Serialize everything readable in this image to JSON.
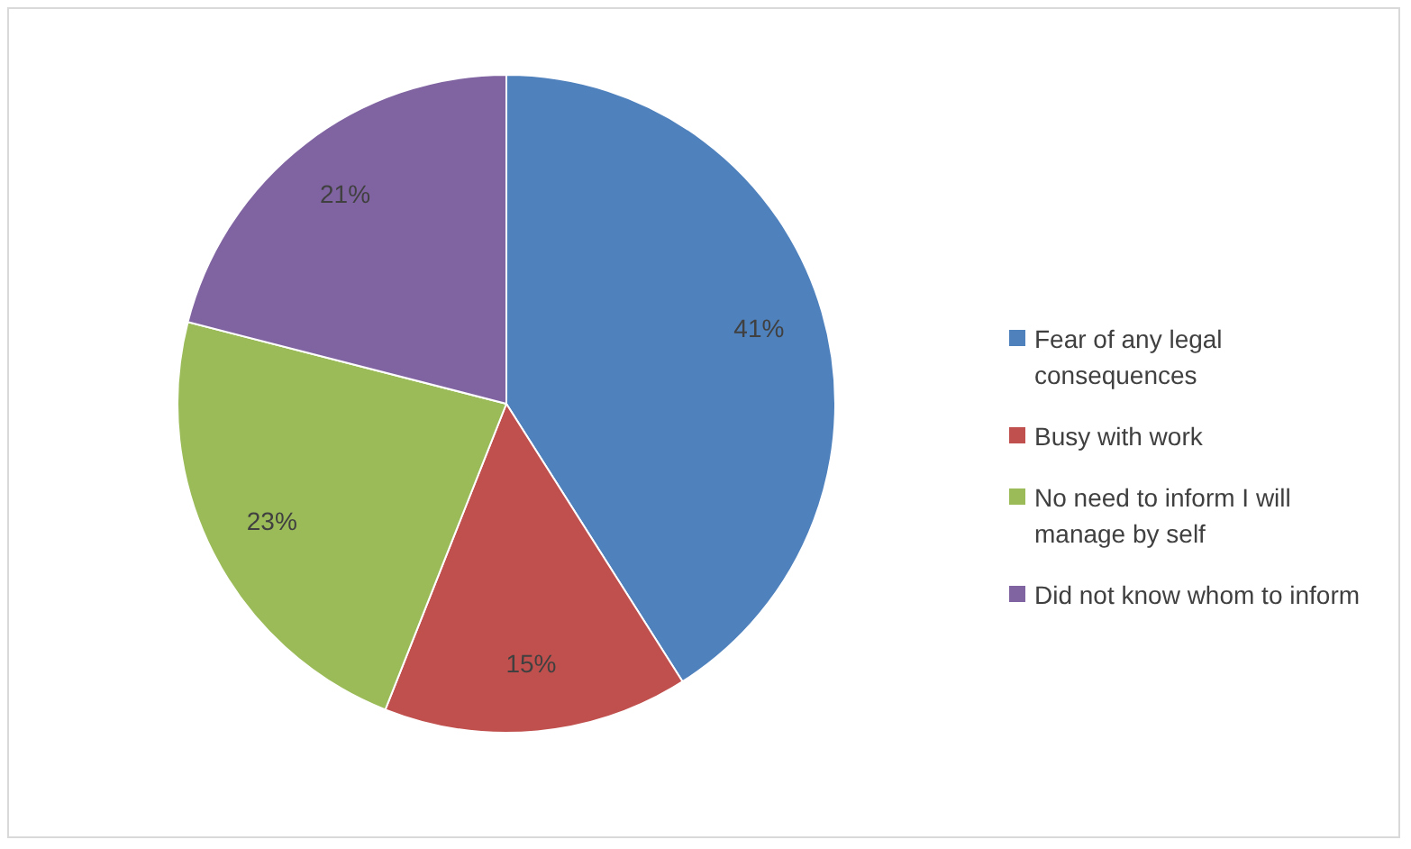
{
  "chart_data": {
    "type": "pie",
    "categories": [
      "Fear of any legal consequences",
      "Busy with work",
      "No need to inform I will manage by self",
      "Did not know whom to inform"
    ],
    "values": [
      41,
      15,
      23,
      21
    ],
    "colors": [
      "#4f81bd",
      "#c0504d",
      "#9bbb59",
      "#8064a2"
    ],
    "value_labels": [
      "41%",
      "15%",
      "23%",
      "21%"
    ],
    "legend": "right"
  }
}
